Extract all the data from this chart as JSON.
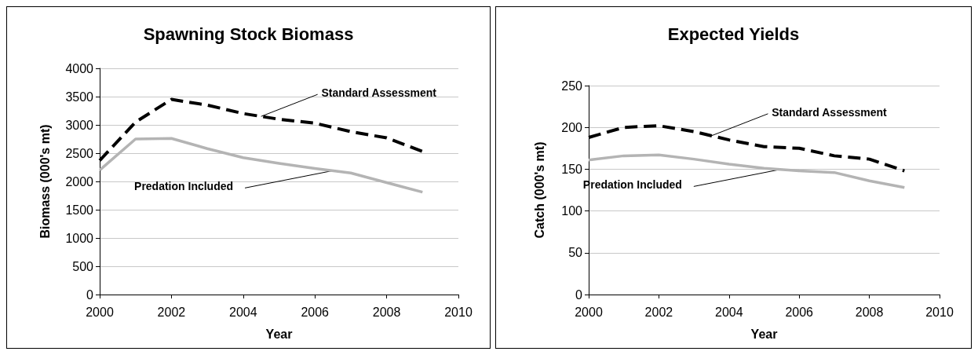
{
  "chart_data": [
    {
      "type": "line",
      "title": "Spawning Stock Biomass",
      "xlabel": "Year",
      "ylabel": "Biomass (000's mt)",
      "xlim": [
        2000,
        2010
      ],
      "xticks": [
        2000,
        2002,
        2004,
        2006,
        2008,
        2010
      ],
      "ylim": [
        0,
        4000
      ],
      "yticks": [
        0,
        500,
        1000,
        1500,
        2000,
        2500,
        3000,
        3500,
        4000
      ],
      "grid": "y",
      "marker": "none",
      "x": [
        2000,
        2001,
        2002,
        2003,
        2004,
        2005,
        2006,
        2007,
        2008,
        2009
      ],
      "series": [
        {
          "color": "#000000",
          "line_style": "dashed",
          "values": [
            2370,
            3050,
            3450,
            3350,
            3200,
            3100,
            3030,
            2880,
            2770,
            2530
          ]
        },
        {
          "color": "#b4b4b4",
          "line_style": "solid",
          "values": [
            2200,
            2750,
            2760,
            2580,
            2420,
            2320,
            2230,
            2150,
            1980,
            1810
          ]
        }
      ],
      "annotations": [
        {
          "text": "Standard Assessment",
          "x": 2004.5,
          "y": 3150
        },
        {
          "text": "Predation Included",
          "x": 2006.5,
          "y": 2190
        }
      ]
    },
    {
      "type": "line",
      "title": "Expected Yields",
      "xlabel": "Year",
      "ylabel": "Catch (000's mt)",
      "xlim": [
        2000,
        2010
      ],
      "xticks": [
        2000,
        2002,
        2004,
        2006,
        2008,
        2010
      ],
      "ylim": [
        0,
        250
      ],
      "yticks": [
        0,
        50,
        100,
        150,
        200,
        250
      ],
      "grid": "y",
      "marker": "none",
      "x": [
        2000,
        2001,
        2002,
        2003,
        2004,
        2005,
        2006,
        2007,
        2008,
        2009
      ],
      "series": [
        {
          "color": "#000000",
          "line_style": "dashed",
          "values": [
            188,
            200,
            202,
            195,
            185,
            177,
            175,
            166,
            162,
            148
          ]
        },
        {
          "color": "#b4b4b4",
          "line_style": "solid",
          "values": [
            161,
            166,
            167,
            162,
            156,
            151,
            148,
            146,
            136,
            128
          ]
        }
      ],
      "annotations": [
        {
          "text": "Standard Assessment",
          "x": 2003.5,
          "y": 190
        },
        {
          "text": "Predation Included",
          "x": 2005.5,
          "y": 150
        }
      ]
    }
  ]
}
